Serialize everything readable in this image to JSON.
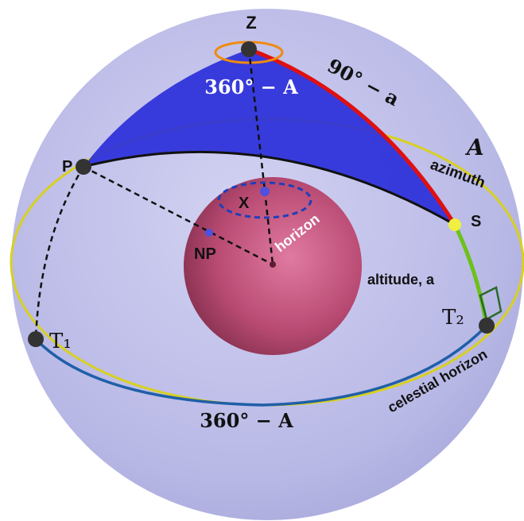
{
  "points": [
    "Z",
    "P",
    "X",
    "NP",
    "S",
    "T₁",
    "T₂"
  ],
  "arc_labels": [
    "360° − A",
    "90° − a",
    "A",
    "azimuth",
    "horizon",
    "altitude, a",
    "celestial horizon",
    "360° − A"
  ]
}
